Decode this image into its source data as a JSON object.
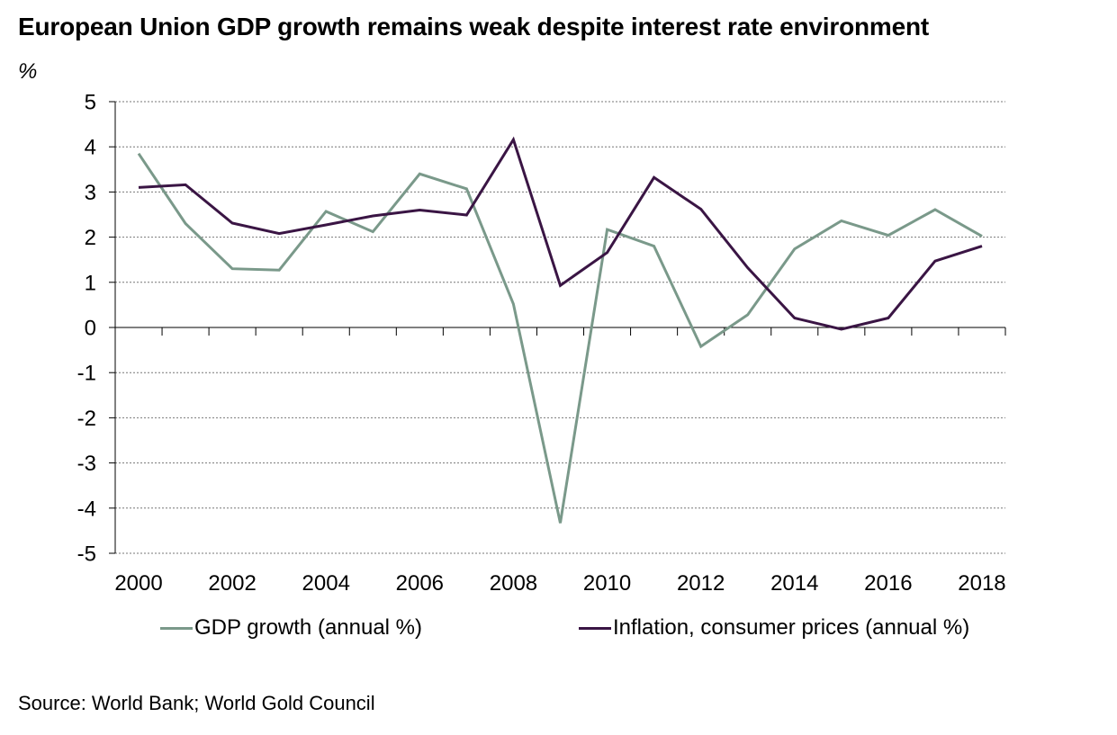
{
  "title": "European Union GDP growth remains weak despite interest rate environment",
  "unit": "%",
  "source": "Source: World Bank; World Gold Council",
  "colors": {
    "gdp": "#7a998a",
    "inflation": "#3a1544",
    "grid": "#777777",
    "axis": "#000000"
  },
  "chart_data": {
    "type": "line",
    "title": "European Union GDP growth remains weak despite interest rate environment",
    "ylabel": "%",
    "xlabel": "",
    "ylim": [
      -5,
      5
    ],
    "yticks": [
      "5",
      "4",
      "3",
      "2",
      "1",
      "0",
      "-1",
      "-2",
      "-3",
      "-4",
      "-5"
    ],
    "x": [
      2000,
      2001,
      2002,
      2003,
      2004,
      2005,
      2006,
      2007,
      2008,
      2009,
      2010,
      2011,
      2012,
      2013,
      2014,
      2015,
      2016,
      2017,
      2018
    ],
    "xtick_labels": [
      "2000",
      "2002",
      "2004",
      "2006",
      "2008",
      "2010",
      "2012",
      "2014",
      "2016",
      "2018"
    ],
    "grid": "horizontal dashed",
    "legend_position": "bottom",
    "series": [
      {
        "name": "GDP growth (annual %)",
        "color": "#7a998a",
        "values": [
          3.85,
          2.3,
          1.3,
          1.27,
          2.57,
          2.12,
          3.4,
          3.07,
          0.52,
          -4.33,
          2.17,
          1.8,
          -0.42,
          0.28,
          1.74,
          2.36,
          2.04,
          2.61,
          2.02
        ]
      },
      {
        "name": "Inflation, consumer prices (annual %)",
        "color": "#3a1544",
        "values": [
          3.1,
          3.16,
          2.31,
          2.08,
          2.27,
          2.47,
          2.6,
          2.49,
          4.16,
          0.93,
          1.66,
          3.32,
          2.62,
          1.32,
          0.21,
          -0.04,
          0.21,
          1.47,
          1.8
        ]
      }
    ]
  }
}
